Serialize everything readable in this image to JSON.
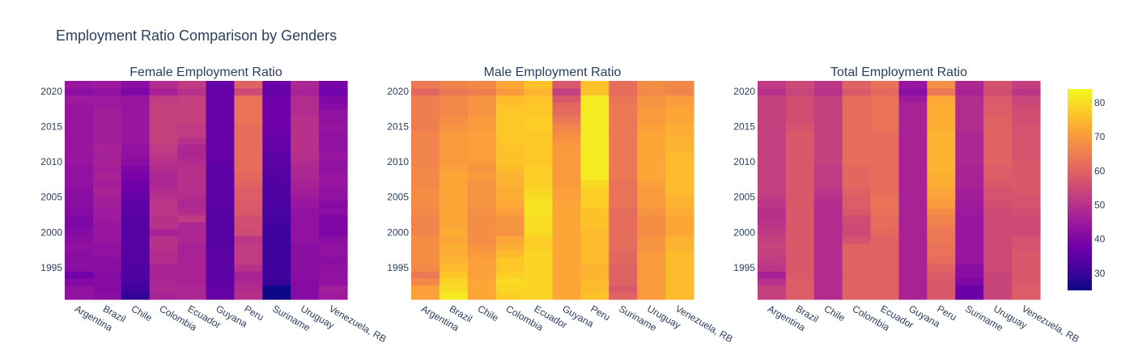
{
  "title": "Employment Ratio Comparison by Genders",
  "colorscale": [
    "#0d0887",
    "#46039f",
    "#7201a8",
    "#9c179e",
    "#bd3786",
    "#d8576b",
    "#ed7953",
    "#fb9f3a",
    "#fdca26",
    "#f0f921"
  ],
  "colorbar": {
    "ticks": [
      30,
      40,
      50,
      60,
      70,
      80
    ],
    "min": 25,
    "max": 84
  },
  "chart_data": [
    {
      "type": "heatmap",
      "title": "Female Employment Ratio",
      "x": [
        "Argentina",
        "Brazil",
        "Chile",
        "Colombia",
        "Ecuador",
        "Guyana",
        "Peru",
        "Suriname",
        "Uruguay",
        "Venezuela, RB"
      ],
      "y_range": [
        1991,
        2021
      ],
      "y_ticks": [
        1995,
        2000,
        2005,
        2010,
        2015,
        2020
      ],
      "z_by_country_1991_to_2021": [
        [
          43,
          43,
          41,
          38,
          42,
          42,
          42,
          43,
          42,
          41,
          40,
          40,
          41,
          42,
          42,
          42,
          43,
          43,
          43,
          44,
          44,
          44,
          44,
          44,
          44,
          44,
          44,
          44,
          45,
          42,
          44
        ],
        [
          42,
          41,
          41,
          41,
          42,
          42,
          43,
          43,
          44,
          44,
          44,
          45,
          45,
          46,
          46,
          47,
          46,
          47,
          46,
          47,
          46,
          47,
          46,
          46,
          46,
          46,
          46,
          45,
          45,
          43,
          45
        ],
        [
          29,
          31,
          32,
          33,
          33,
          34,
          34,
          34,
          34,
          34,
          34,
          34,
          35,
          35,
          36,
          37,
          38,
          39,
          40,
          42,
          43,
          43,
          44,
          44,
          44,
          44,
          44,
          44,
          44,
          40,
          42
        ],
        [
          47,
          48,
          48,
          47,
          47,
          49,
          49,
          50,
          50,
          47,
          50,
          50,
          51,
          51,
          50,
          49,
          48,
          48,
          49,
          50,
          51,
          52,
          53,
          53,
          53,
          53,
          53,
          53,
          52,
          47,
          49
        ],
        [
          48,
          48,
          47,
          47,
          47,
          47,
          47,
          47,
          48,
          48,
          48,
          52,
          49,
          48,
          49,
          50,
          50,
          50,
          50,
          49,
          48,
          48,
          50,
          52,
          52,
          53,
          53,
          53,
          53,
          50,
          52
        ],
        [
          36,
          36,
          35,
          35,
          35,
          35,
          35,
          34,
          34,
          34,
          34,
          34,
          34,
          35,
          35,
          35,
          35,
          35,
          35,
          36,
          36,
          36,
          36,
          36,
          36,
          36,
          36,
          36,
          36,
          36,
          36
        ],
        [
          50,
          49,
          48,
          47,
          50,
          52,
          52,
          52,
          51,
          55,
          56,
          56,
          58,
          58,
          59,
          59,
          60,
          61,
          62,
          62,
          62,
          62,
          62,
          62,
          62,
          63,
          63,
          63,
          63,
          55,
          60
        ],
        [
          25,
          25,
          30,
          31,
          31,
          31,
          31,
          31,
          31,
          31,
          31,
          32,
          32,
          32,
          33,
          33,
          33,
          34,
          34,
          35,
          35,
          36,
          36,
          37,
          37,
          38,
          38,
          38,
          38,
          36,
          37
        ],
        [
          41,
          41,
          41,
          42,
          42,
          42,
          42,
          42,
          43,
          43,
          43,
          43,
          43,
          44,
          45,
          46,
          47,
          48,
          48,
          49,
          50,
          50,
          50,
          50,
          50,
          50,
          49,
          49,
          49,
          47,
          48
        ],
        [
          45,
          46,
          43,
          43,
          43,
          42,
          43,
          43,
          42,
          40,
          40,
          40,
          42,
          41,
          43,
          43,
          44,
          44,
          43,
          43,
          44,
          43,
          43,
          43,
          44,
          43,
          43,
          41,
          40,
          38,
          39
        ]
      ]
    },
    {
      "type": "heatmap",
      "title": "Male Employment Ratio",
      "x": [
        "Argentina",
        "Brazil",
        "Chile",
        "Colombia",
        "Ecuador",
        "Guyana",
        "Peru",
        "Suriname",
        "Uruguay",
        "Venezuela, RB"
      ],
      "y_range": [
        1991,
        2021
      ],
      "y_ticks": [
        1995,
        2000,
        2005,
        2010,
        2015,
        2020
      ],
      "z_by_country_1991_to_2021": [
        [
          71,
          71,
          67,
          64,
          67,
          68,
          68,
          68,
          68,
          66,
          66,
          66,
          67,
          68,
          68,
          68,
          67,
          67,
          67,
          66,
          66,
          66,
          66,
          66,
          65,
          65,
          65,
          65,
          65,
          61,
          64
        ],
        [
          82,
          80,
          79,
          77,
          75,
          74,
          73,
          73,
          72,
          73,
          72,
          72,
          72,
          72,
          72,
          72,
          72,
          72,
          71,
          70,
          70,
          70,
          70,
          70,
          69,
          68,
          67,
          67,
          67,
          64,
          66
        ],
        [
          72,
          72,
          72,
          71,
          71,
          71,
          70,
          69,
          68,
          68,
          68,
          68,
          68,
          69,
          69,
          69,
          69,
          70,
          69,
          70,
          71,
          71,
          71,
          71,
          70,
          70,
          69,
          69,
          69,
          65,
          67
        ],
        [
          78,
          79,
          80,
          78,
          77,
          77,
          75,
          73,
          72,
          69,
          69,
          69,
          71,
          72,
          73,
          73,
          74,
          74,
          75,
          76,
          76,
          76,
          77,
          77,
          77,
          77,
          77,
          76,
          75,
          70,
          72
        ],
        [
          79,
          79,
          79,
          79,
          79,
          79,
          79,
          78,
          78,
          80,
          80,
          80,
          81,
          81,
          80,
          79,
          78,
          78,
          78,
          77,
          77,
          77,
          77,
          77,
          78,
          78,
          77,
          77,
          76,
          74,
          76
        ],
        [
          72,
          72,
          72,
          72,
          72,
          72,
          72,
          72,
          72,
          72,
          72,
          72,
          72,
          72,
          71,
          71,
          70,
          70,
          70,
          70,
          70,
          70,
          69,
          68,
          66,
          64,
          62,
          61,
          58,
          53,
          58
        ],
        [
          76,
          75,
          75,
          74,
          74,
          75,
          75,
          75,
          75,
          75,
          76,
          76,
          76,
          78,
          78,
          78,
          80,
          82,
          82,
          82,
          82,
          82,
          82,
          82,
          82,
          82,
          82,
          82,
          82,
          76,
          76
        ],
        [
          60,
          58,
          60,
          60,
          60,
          61,
          61,
          62,
          62,
          62,
          62,
          62,
          62,
          63,
          63,
          63,
          63,
          64,
          64,
          64,
          64,
          64,
          64,
          64,
          64,
          64,
          64,
          64,
          63,
          62,
          62
        ],
        [
          70,
          70,
          70,
          70,
          70,
          70,
          70,
          69,
          69,
          68,
          68,
          68,
          69,
          70,
          70,
          70,
          71,
          72,
          72,
          72,
          72,
          72,
          72,
          72,
          71,
          70,
          70,
          69,
          69,
          67,
          68
        ],
        [
          75,
          75,
          75,
          75,
          75,
          75,
          75,
          74,
          74,
          72,
          72,
          72,
          73,
          74,
          74,
          75,
          75,
          75,
          75,
          75,
          75,
          74,
          74,
          73,
          73,
          72,
          72,
          71,
          70,
          66,
          67
        ]
      ]
    },
    {
      "type": "heatmap",
      "title": "Total Employment Ratio",
      "x": [
        "Argentina",
        "Brazil",
        "Chile",
        "Colombia",
        "Ecuador",
        "Guyana",
        "Peru",
        "Suriname",
        "Uruguay",
        "Venezuela, RB"
      ],
      "y_range": [
        1991,
        2021
      ],
      "y_ticks": [
        1995,
        2000,
        2005,
        2010,
        2015,
        2020
      ],
      "z_by_country_1991_to_2021": [
        [
          53,
          53,
          50,
          47,
          51,
          52,
          53,
          54,
          53,
          52,
          51,
          50,
          50,
          51,
          52,
          53,
          53,
          53,
          53,
          53,
          53,
          53,
          53,
          53,
          53,
          53,
          53,
          53,
          53,
          50,
          52
        ],
        [
          59,
          59,
          59,
          58,
          58,
          58,
          58,
          58,
          58,
          58,
          58,
          58,
          58,
          58,
          58,
          58,
          58,
          58,
          58,
          58,
          58,
          58,
          58,
          58,
          57,
          56,
          56,
          56,
          56,
          54,
          55
        ],
        [
          49,
          49,
          49,
          49,
          49,
          49,
          49,
          49,
          49,
          49,
          49,
          49,
          49,
          49,
          50,
          51,
          52,
          52,
          52,
          53,
          53,
          53,
          53,
          53,
          53,
          53,
          53,
          53,
          53,
          50,
          51
        ],
        [
          60,
          60,
          60,
          60,
          60,
          60,
          60,
          60,
          57,
          55,
          55,
          56,
          58,
          59,
          59,
          60,
          61,
          61,
          61,
          62,
          62,
          62,
          62,
          62,
          62,
          62,
          62,
          62,
          62,
          58,
          60
        ],
        [
          60,
          60,
          60,
          60,
          60,
          60,
          60,
          60,
          60,
          61,
          62,
          62,
          63,
          63,
          63,
          62,
          62,
          62,
          62,
          62,
          62,
          62,
          62,
          62,
          63,
          63,
          63,
          63,
          63,
          61,
          63
        ],
        [
          47,
          47,
          47,
          47,
          47,
          47,
          47,
          47,
          47,
          47,
          47,
          47,
          47,
          47,
          47,
          47,
          47,
          47,
          47,
          47,
          47,
          47,
          47,
          47,
          47,
          47,
          47,
          47,
          45,
          42,
          44
        ],
        [
          58,
          58,
          58,
          59,
          60,
          62,
          63,
          63,
          64,
          64,
          65,
          66,
          68,
          70,
          71,
          72,
          73,
          73,
          74,
          74,
          74,
          74,
          74,
          74,
          73,
          73,
          73,
          73,
          72,
          64,
          68
        ],
        [
          37,
          37,
          40,
          42,
          42,
          44,
          44,
          44,
          44,
          44,
          44,
          44,
          45,
          45,
          46,
          46,
          47,
          47,
          47,
          48,
          48,
          48,
          48,
          48,
          49,
          49,
          49,
          49,
          49,
          47,
          48
        ],
        [
          54,
          54,
          54,
          54,
          55,
          55,
          55,
          55,
          55,
          55,
          55,
          55,
          55,
          56,
          57,
          57,
          58,
          59,
          59,
          60,
          60,
          60,
          60,
          60,
          60,
          60,
          59,
          59,
          58,
          56,
          57
        ],
        [
          59,
          59,
          58,
          58,
          58,
          58,
          58,
          57,
          57,
          55,
          55,
          55,
          56,
          57,
          57,
          58,
          58,
          58,
          58,
          58,
          57,
          57,
          57,
          57,
          57,
          56,
          56,
          55,
          54,
          51,
          53
        ]
      ]
    }
  ]
}
